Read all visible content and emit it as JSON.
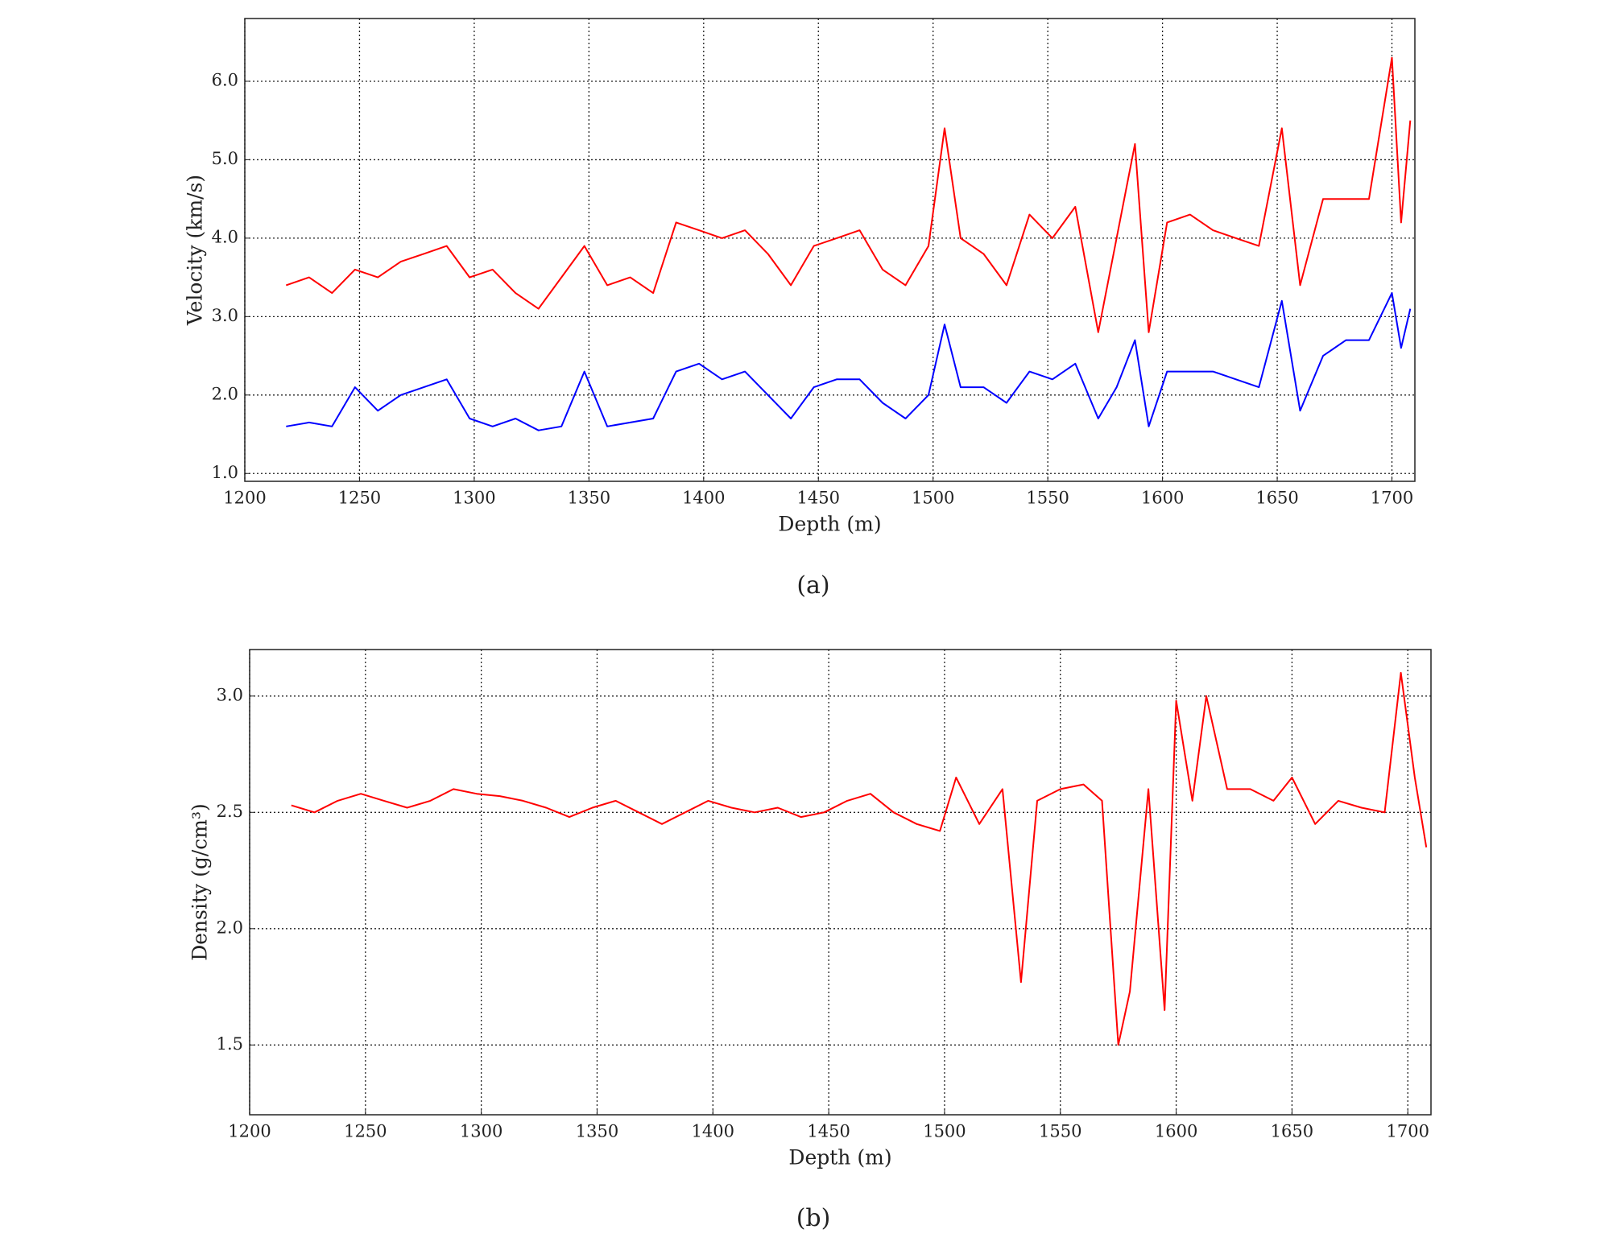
{
  "chart_data": [
    {
      "type": "line",
      "caption": "(a)",
      "x_label": "Depth (m)",
      "y_label": "Velocity (km/s)",
      "x": [
        1218,
        1228,
        1238,
        1248,
        1258,
        1268,
        1278,
        1288,
        1298,
        1308,
        1318,
        1328,
        1338,
        1348,
        1358,
        1368,
        1378,
        1388,
        1398,
        1408,
        1418,
        1428,
        1438,
        1448,
        1458,
        1468,
        1478,
        1488,
        1498,
        1505,
        1512,
        1522,
        1532,
        1542,
        1552,
        1562,
        1572,
        1580,
        1588,
        1594,
        1602,
        1612,
        1622,
        1632,
        1642,
        1652,
        1660,
        1670,
        1680,
        1690,
        1700,
        1704,
        1708
      ],
      "series": [
        {
          "color": "#ff0000",
          "values": [
            3.4,
            3.5,
            3.3,
            3.6,
            3.5,
            3.7,
            3.8,
            3.9,
            3.5,
            3.6,
            3.3,
            3.1,
            3.5,
            3.9,
            3.4,
            3.5,
            3.3,
            4.2,
            4.1,
            4.0,
            4.1,
            3.8,
            3.4,
            3.9,
            4.0,
            4.1,
            3.6,
            3.4,
            3.9,
            5.4,
            4.0,
            3.8,
            3.4,
            4.3,
            4.0,
            4.4,
            2.8,
            4.0,
            5.2,
            2.8,
            4.2,
            4.3,
            4.1,
            4.0,
            3.9,
            5.4,
            3.4,
            4.5,
            4.5,
            4.5,
            6.3,
            4.2,
            5.5
          ]
        },
        {
          "color": "#0000ff",
          "values": [
            1.6,
            1.65,
            1.6,
            2.1,
            1.8,
            2.0,
            2.1,
            2.2,
            1.7,
            1.6,
            1.7,
            1.55,
            1.6,
            2.3,
            1.6,
            1.65,
            1.7,
            2.3,
            2.4,
            2.2,
            2.3,
            2.0,
            1.7,
            2.1,
            2.2,
            2.2,
            1.9,
            1.7,
            2.0,
            2.9,
            2.1,
            2.1,
            1.9,
            2.3,
            2.2,
            2.4,
            1.7,
            2.1,
            2.7,
            1.6,
            2.3,
            2.3,
            2.3,
            2.2,
            2.1,
            3.2,
            1.8,
            2.5,
            2.7,
            2.7,
            3.3,
            2.6,
            3.1
          ]
        }
      ],
      "xlim": [
        1200,
        1710
      ],
      "xticks": [
        1200,
        1250,
        1300,
        1350,
        1400,
        1450,
        1500,
        1550,
        1600,
        1650,
        1700
      ],
      "ylim": [
        0.9,
        6.8
      ],
      "yticks": [
        {
          "value": 1,
          "label": "1.0"
        },
        {
          "value": 2,
          "label": "2.0"
        },
        {
          "value": 3,
          "label": "3.0"
        },
        {
          "value": 4,
          "label": "4.0"
        },
        {
          "value": 5,
          "label": "5.0"
        },
        {
          "value": 6,
          "label": "6.0"
        }
      ],
      "grid": true
    },
    {
      "type": "line",
      "caption": "(b)",
      "x_label": "Depth (m)",
      "y_label": "Density (g/cm³)",
      "x": [
        1218,
        1228,
        1238,
        1248,
        1258,
        1268,
        1278,
        1288,
        1298,
        1308,
        1318,
        1328,
        1338,
        1348,
        1358,
        1368,
        1378,
        1388,
        1398,
        1408,
        1418,
        1428,
        1438,
        1448,
        1458,
        1468,
        1478,
        1488,
        1498,
        1505,
        1515,
        1525,
        1533,
        1540,
        1550,
        1560,
        1568,
        1575,
        1580,
        1588,
        1595,
        1600,
        1607,
        1613,
        1622,
        1632,
        1642,
        1650,
        1660,
        1670,
        1680,
        1690,
        1697,
        1703,
        1708
      ],
      "series": [
        {
          "color": "#ff0000",
          "values": [
            2.53,
            2.5,
            2.55,
            2.58,
            2.55,
            2.52,
            2.55,
            2.6,
            2.58,
            2.57,
            2.55,
            2.52,
            2.48,
            2.52,
            2.55,
            2.5,
            2.45,
            2.5,
            2.55,
            2.52,
            2.5,
            2.52,
            2.48,
            2.5,
            2.55,
            2.58,
            2.5,
            2.45,
            2.42,
            2.65,
            2.45,
            2.6,
            1.77,
            2.55,
            2.6,
            2.62,
            2.55,
            1.5,
            1.73,
            2.6,
            1.65,
            2.98,
            2.55,
            3.0,
            2.6,
            2.6,
            2.55,
            2.65,
            2.45,
            2.55,
            2.52,
            2.5,
            3.1,
            2.65,
            2.35
          ]
        }
      ],
      "xlim": [
        1200,
        1710
      ],
      "xticks": [
        1200,
        1250,
        1300,
        1350,
        1400,
        1450,
        1500,
        1550,
        1600,
        1650,
        1700
      ],
      "ylim": [
        1.2,
        3.2
      ],
      "yticks": [
        1.5,
        {
          "value": 2,
          "label": "2.0"
        },
        2.5,
        {
          "value": 3,
          "label": "3.0"
        }
      ],
      "grid": true
    }
  ]
}
